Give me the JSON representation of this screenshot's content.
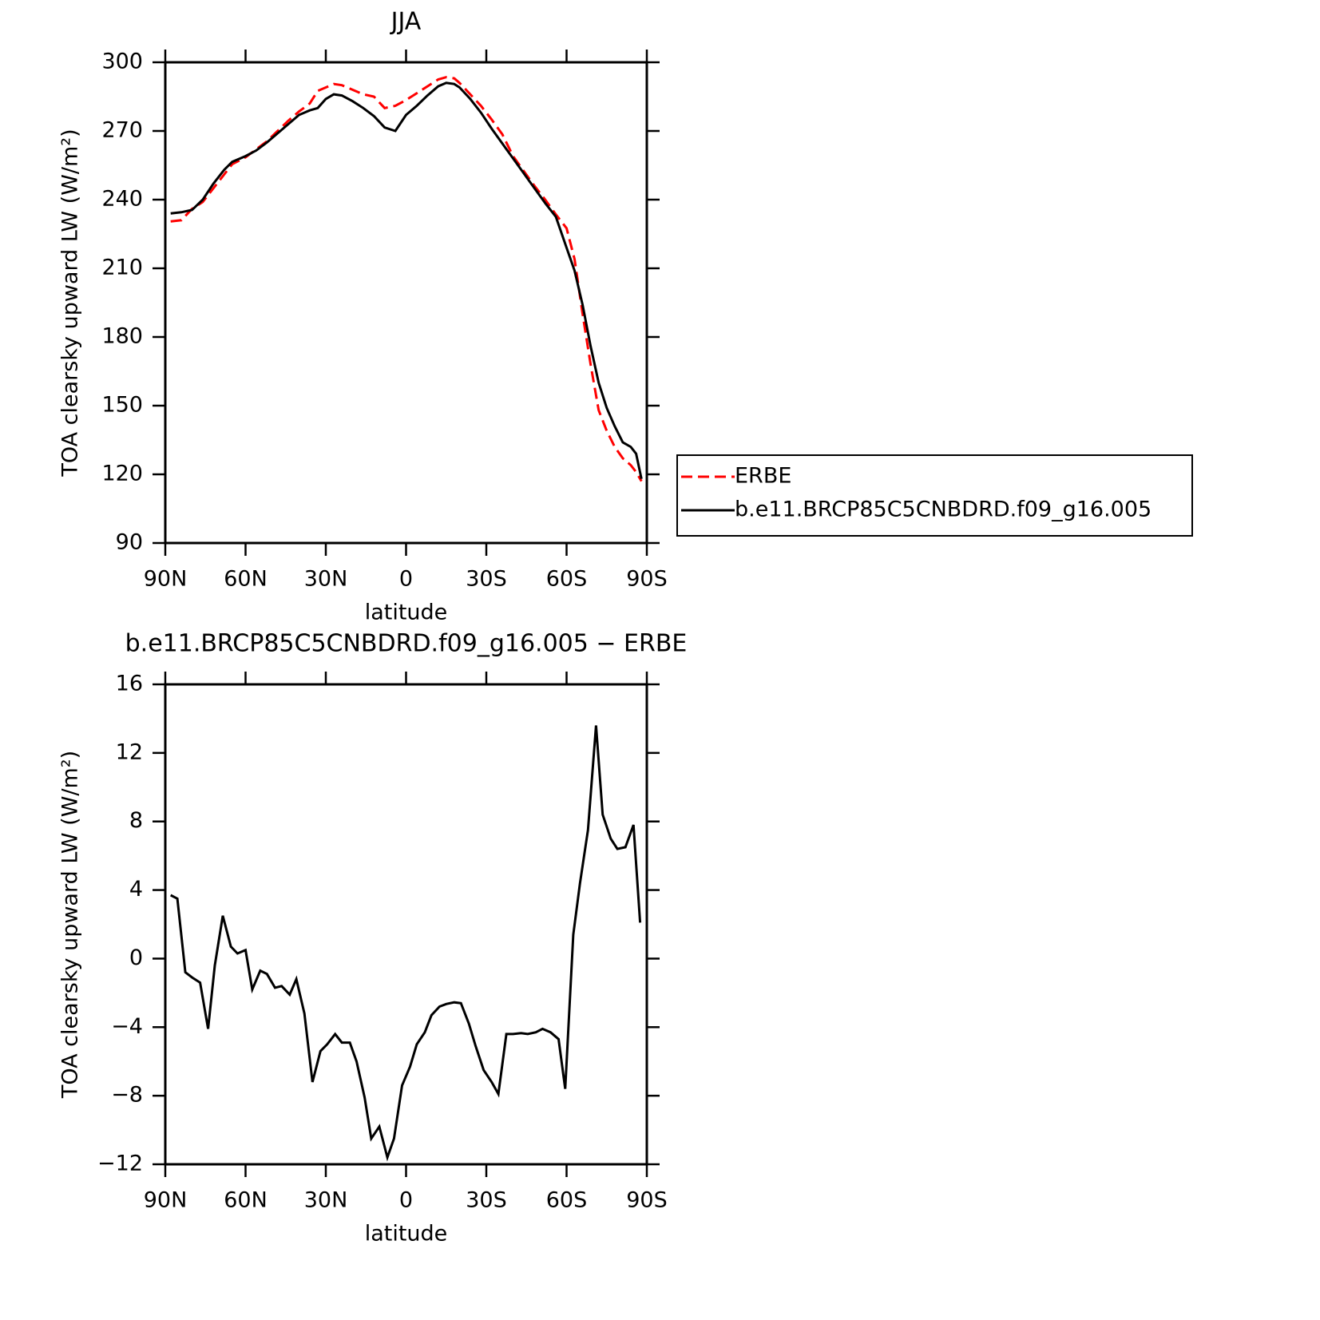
{
  "chart_data": [
    {
      "type": "line",
      "title": "JJA",
      "xlabel": "latitude",
      "ylabel": "TOA clearsky upward LW (W/m²)",
      "xlim": [
        90,
        -90
      ],
      "xticks": [
        {
          "value": 90,
          "label": "90N"
        },
        {
          "value": 60,
          "label": "60N"
        },
        {
          "value": 30,
          "label": "30N"
        },
        0,
        {
          "value": -30,
          "label": "30S"
        },
        {
          "value": -60,
          "label": "60S"
        },
        {
          "value": -90,
          "label": "90S"
        }
      ],
      "ylim": [
        90,
        300
      ],
      "yticks": [
        90,
        120,
        150,
        180,
        210,
        240,
        270,
        300
      ],
      "legend": "right",
      "x": [
        88,
        84,
        80,
        76,
        72,
        68,
        65,
        60,
        56,
        52,
        48,
        44,
        40,
        36,
        33,
        30,
        27,
        24,
        20,
        16,
        12,
        8,
        4,
        0,
        -4,
        -8,
        -12,
        -15,
        -18,
        -20,
        -24,
        -28,
        -32,
        -36,
        -40,
        -44,
        -48,
        -52,
        -56,
        -60,
        -63,
        -66,
        -69,
        -72,
        -75,
        -78,
        -81,
        -84,
        -86,
        -88
      ],
      "series": [
        {
          "name": "ERBE",
          "color": "#ff0000",
          "line_style": "dashed",
          "values": [
            230.5,
            231,
            236,
            239,
            245,
            251,
            255.5,
            258.5,
            262,
            265.5,
            270,
            274.5,
            278.5,
            282,
            287.5,
            289,
            290.5,
            290,
            288,
            286,
            285,
            280,
            281,
            283.5,
            286.5,
            289.5,
            292.5,
            293.5,
            293,
            291,
            286,
            281,
            275,
            268.5,
            259,
            252.5,
            246,
            240,
            233.5,
            227.5,
            214,
            190,
            168,
            148,
            139,
            132,
            127,
            124,
            121,
            117
          ]
        },
        {
          "name": "b.e11.BRCP85C5CNBDRD.f09_g16.005",
          "color": "#000000",
          "line_style": "solid",
          "values": [
            234,
            234.5,
            235.5,
            240,
            247,
            253,
            256.5,
            259,
            261.5,
            265,
            269,
            273,
            277,
            279,
            280,
            284,
            286,
            285.5,
            283,
            280,
            276.5,
            271.5,
            270,
            277,
            281,
            285.5,
            289.5,
            291,
            290.5,
            289,
            284,
            278,
            271,
            264.5,
            258,
            251.5,
            245,
            238.5,
            232.5,
            219,
            209,
            194,
            176,
            160,
            149,
            141,
            134,
            132,
            129,
            118
          ]
        }
      ]
    },
    {
      "type": "line",
      "title": "b.e11.BRCP85C5CNBDRD.f09_g16.005 − ERBE",
      "xlabel": "latitude",
      "ylabel": "TOA clearsky upward LW (W/m²)",
      "xlim": [
        90,
        -90
      ],
      "xticks": [
        {
          "value": 90,
          "label": "90N"
        },
        {
          "value": 60,
          "label": "60N"
        },
        {
          "value": 30,
          "label": "30N"
        },
        0,
        {
          "value": -30,
          "label": "30S"
        },
        {
          "value": -60,
          "label": "60S"
        },
        {
          "value": -90,
          "label": "90S"
        }
      ],
      "ylim": [
        -12,
        16
      ],
      "yticks": [
        {
          "value": -12,
          "label": "−12"
        },
        {
          "value": -8,
          "label": "−8"
        },
        {
          "value": -4,
          "label": "−4"
        },
        0,
        4,
        8,
        12,
        16
      ],
      "x": [
        88,
        85.5,
        82.5,
        80,
        77,
        74,
        71.5,
        68.5,
        65.5,
        63,
        60,
        57.5,
        54.5,
        52,
        49,
        46.5,
        43.5,
        41,
        38,
        35,
        32,
        29.5,
        26.5,
        24,
        21,
        18.5,
        15.5,
        13,
        10,
        7,
        4.5,
        1.5,
        -1.5,
        -4,
        -7,
        -9.5,
        -12.5,
        -15,
        -18,
        -20.5,
        -23.5,
        -26,
        -29,
        -32,
        -34.5,
        -37.5,
        -40,
        -43,
        -45.5,
        -48.5,
        -51,
        -54,
        -57,
        -59.5,
        -62.5,
        -65,
        -68,
        -71,
        -73.5,
        -76.5,
        -79,
        -82,
        -85,
        -87.5
      ],
      "series": [
        {
          "name": "b.e11.BRCP85C5CNBDRD.f09_g16.005 − ERBE",
          "color": "#000000",
          "line_style": "solid",
          "values": [
            3.7,
            3.5,
            -0.8,
            -1.1,
            -1.4,
            -4.1,
            -0.4,
            2.5,
            0.7,
            0.3,
            0.5,
            -1.8,
            -0.7,
            -0.9,
            -1.7,
            -1.6,
            -2.1,
            -1.2,
            -3.2,
            -7.2,
            -5.4,
            -5.0,
            -4.4,
            -4.9,
            -4.9,
            -6.0,
            -8.1,
            -10.5,
            -9.8,
            -11.6,
            -10.5,
            -7.4,
            -6.3,
            -5.0,
            -4.3,
            -3.3,
            -2.8,
            -2.65,
            -2.55,
            -2.6,
            -3.8,
            -5.1,
            -6.5,
            -7.2,
            -7.9,
            -4.4,
            -4.4,
            -4.35,
            -4.4,
            -4.3,
            -4.1,
            -4.3,
            -4.7,
            -7.6,
            1.4,
            4.4,
            7.5,
            13.6,
            8.4,
            7.0,
            6.4,
            6.5,
            7.8,
            2.1
          ]
        }
      ]
    }
  ]
}
